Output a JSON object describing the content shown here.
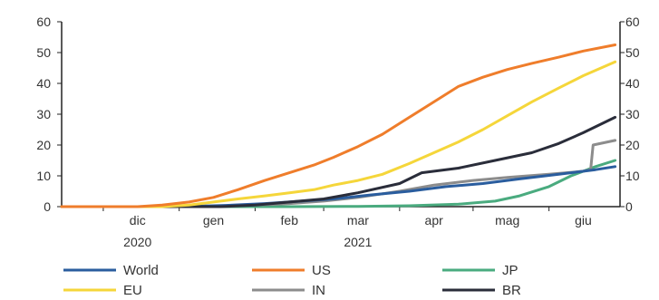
{
  "chart_data": {
    "type": "line",
    "title": "",
    "xlabel": "",
    "ylabel": "",
    "ylim": [
      0,
      60
    ],
    "yticks": [
      0,
      10,
      20,
      30,
      40,
      50,
      60
    ],
    "y_axis_both_sides": true,
    "grid": false,
    "x_range": [
      "2020-11-14",
      "2021-06-30"
    ],
    "x_month_labels": [
      {
        "label": "dic",
        "date": "2020-12-15"
      },
      {
        "label": "gen",
        "date": "2021-01-15"
      },
      {
        "label": "feb",
        "date": "2021-02-15"
      },
      {
        "label": "mar",
        "date": "2021-03-15"
      },
      {
        "label": "apr",
        "date": "2021-04-15"
      },
      {
        "label": "mag",
        "date": "2021-05-15"
      },
      {
        "label": "giu",
        "date": "2021-06-15"
      }
    ],
    "x_year_labels": [
      {
        "label": "2020",
        "date": "2020-12-15"
      },
      {
        "label": "2021",
        "date": "2021-03-15"
      }
    ],
    "legend_position": "bottom",
    "series": [
      {
        "name": "World",
        "color": "#2a5d9e",
        "points": [
          [
            "2020-12-15",
            0
          ],
          [
            "2021-01-05",
            0.1
          ],
          [
            "2021-01-20",
            0.4
          ],
          [
            "2021-02-05",
            1
          ],
          [
            "2021-02-20",
            1.8
          ],
          [
            "2021-03-05",
            2.5
          ],
          [
            "2021-03-20",
            3.8
          ],
          [
            "2021-04-05",
            5
          ],
          [
            "2021-04-20",
            6.5
          ],
          [
            "2021-05-05",
            7.5
          ],
          [
            "2021-05-20",
            9
          ],
          [
            "2021-06-05",
            10.5
          ],
          [
            "2021-06-20",
            12
          ],
          [
            "2021-06-28",
            13
          ]
        ]
      },
      {
        "name": "US",
        "color": "#ef7d2b",
        "points": [
          [
            "2020-12-15",
            0
          ],
          [
            "2020-12-25",
            0.5
          ],
          [
            "2021-01-05",
            1.5
          ],
          [
            "2021-01-15",
            3
          ],
          [
            "2021-01-25",
            5.5
          ],
          [
            "2021-02-05",
            8.5
          ],
          [
            "2021-02-15",
            11
          ],
          [
            "2021-02-25",
            13.5
          ],
          [
            "2021-03-05",
            16
          ],
          [
            "2021-03-15",
            19.5
          ],
          [
            "2021-03-25",
            23.5
          ],
          [
            "2021-04-05",
            29
          ],
          [
            "2021-04-15",
            34
          ],
          [
            "2021-04-25",
            39
          ],
          [
            "2021-05-05",
            42
          ],
          [
            "2021-05-15",
            44.5
          ],
          [
            "2021-05-25",
            46.5
          ],
          [
            "2021-06-05",
            48.5
          ],
          [
            "2021-06-15",
            50.5
          ],
          [
            "2021-06-28",
            52.5
          ]
        ]
      },
      {
        "name": "JP",
        "color": "#4aab7f",
        "points": [
          [
            "2021-02-15",
            0
          ],
          [
            "2021-03-15",
            0.1
          ],
          [
            "2021-04-05",
            0.3
          ],
          [
            "2021-04-25",
            0.8
          ],
          [
            "2021-05-10",
            1.8
          ],
          [
            "2021-05-20",
            3.5
          ],
          [
            "2021-06-01",
            6.5
          ],
          [
            "2021-06-10",
            10
          ],
          [
            "2021-06-20",
            13
          ],
          [
            "2021-06-28",
            15
          ]
        ]
      },
      {
        "name": "EU",
        "color": "#f5d63a",
        "points": [
          [
            "2020-12-25",
            0
          ],
          [
            "2021-01-05",
            0.5
          ],
          [
            "2021-01-15",
            1.5
          ],
          [
            "2021-01-25",
            2.5
          ],
          [
            "2021-02-05",
            3.5
          ],
          [
            "2021-02-15",
            4.5
          ],
          [
            "2021-02-25",
            5.5
          ],
          [
            "2021-03-05",
            7
          ],
          [
            "2021-03-15",
            8.5
          ],
          [
            "2021-03-25",
            10.5
          ],
          [
            "2021-04-05",
            14
          ],
          [
            "2021-04-15",
            17.5
          ],
          [
            "2021-04-25",
            21
          ],
          [
            "2021-05-05",
            25
          ],
          [
            "2021-05-15",
            29.5
          ],
          [
            "2021-05-25",
            34
          ],
          [
            "2021-06-05",
            38.5
          ],
          [
            "2021-06-15",
            42.5
          ],
          [
            "2021-06-28",
            47
          ]
        ]
      },
      {
        "name": "IN",
        "color": "#8c8c8c",
        "points": [
          [
            "2021-01-16",
            0
          ],
          [
            "2021-02-01",
            0.5
          ],
          [
            "2021-02-15",
            1
          ],
          [
            "2021-03-01",
            1.8
          ],
          [
            "2021-03-15",
            3
          ],
          [
            "2021-04-01",
            5
          ],
          [
            "2021-04-15",
            7
          ],
          [
            "2021-05-01",
            8.5
          ],
          [
            "2021-05-15",
            9.5
          ],
          [
            "2021-06-01",
            10.5
          ],
          [
            "2021-06-15",
            11.5
          ],
          [
            "2021-06-18",
            12
          ],
          [
            "2021-06-19",
            20
          ],
          [
            "2021-06-28",
            21.5
          ]
        ]
      },
      {
        "name": "BR",
        "color": "#2a2d3a",
        "points": [
          [
            "2021-01-18",
            0
          ],
          [
            "2021-02-01",
            0.5
          ],
          [
            "2021-02-15",
            1.5
          ],
          [
            "2021-03-01",
            2.5
          ],
          [
            "2021-03-15",
            4.5
          ],
          [
            "2021-04-01",
            7.5
          ],
          [
            "2021-04-10",
            11
          ],
          [
            "2021-04-25",
            12.5
          ],
          [
            "2021-05-10",
            15
          ],
          [
            "2021-05-25",
            17.5
          ],
          [
            "2021-06-05",
            20.5
          ],
          [
            "2021-06-15",
            24
          ],
          [
            "2021-06-28",
            29
          ]
        ]
      }
    ]
  }
}
